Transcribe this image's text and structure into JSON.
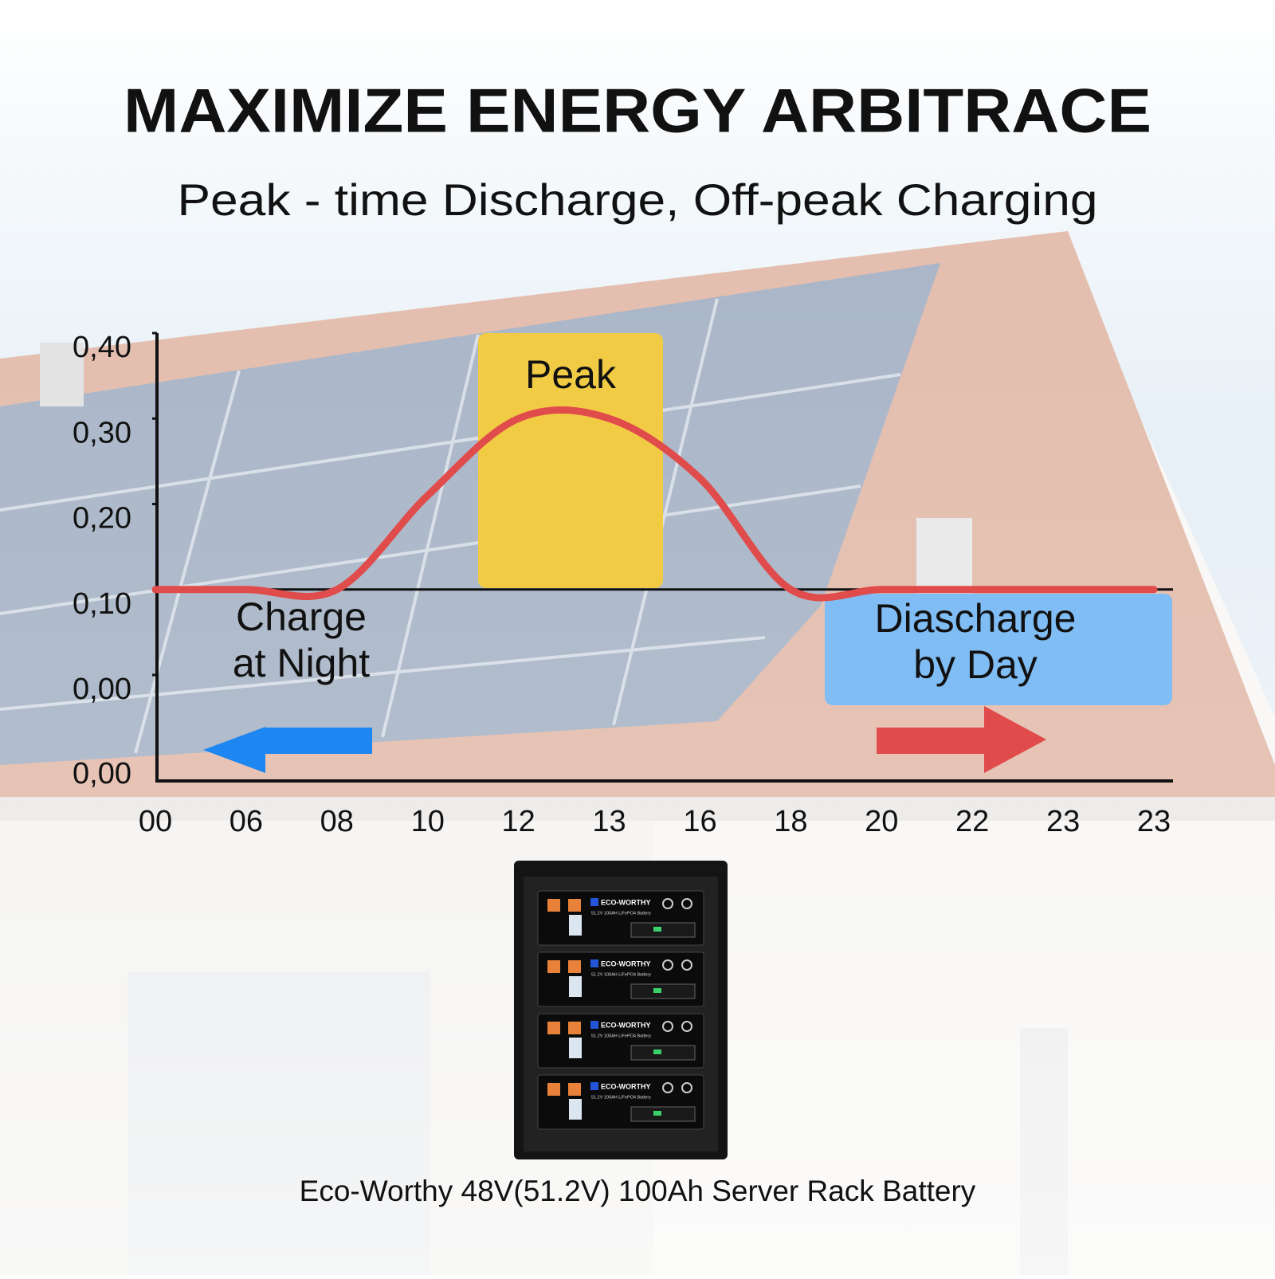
{
  "header": {
    "title": "MAXIMIZE ENERGY ARBITRACE",
    "subtitle": "Peak - time Discharge, Off-peak Charging"
  },
  "chart_data": {
    "type": "line",
    "categories": [
      "00",
      "06",
      "08",
      "10",
      "12",
      "13",
      "16",
      "18",
      "20",
      "22",
      "23",
      "23"
    ],
    "series": [
      {
        "color": "#e04b4b",
        "values": [
          0.1,
          0.1,
          0.1,
          0.21,
          0.3,
          0.3,
          0.23,
          0.1,
          0.1,
          0.1,
          0.1,
          0.1
        ]
      }
    ],
    "ylim": [
      -0.124,
      0.4
    ],
    "yticks": [
      {
        "value": 0.4,
        "label": "0,40"
      },
      {
        "value": 0.3,
        "label": "0,30"
      },
      {
        "value": 0.2,
        "label": "0,20"
      },
      {
        "value": 0.1,
        "label": "0,10"
      },
      {
        "value": 0,
        "label": "0,00"
      }
    ],
    "bottom_label": "0,00",
    "annotations": {
      "peak": "Peak",
      "charge": [
        "Charge",
        "at Night"
      ],
      "discharge": [
        "Diascharge",
        "by Day"
      ]
    }
  },
  "product": {
    "brand": "ECO-WORTHY",
    "module_label": "51.2V 100AH LiFePO4 Battery",
    "caption": "Eco-Worthy 48V(51.2V) 100Ah Server Rack Battery"
  }
}
